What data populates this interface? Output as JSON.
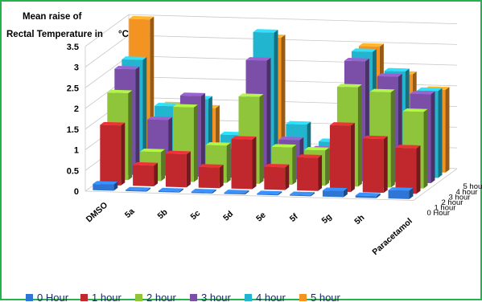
{
  "chart_data": {
    "type": "bar",
    "title": [
      "Mean raise of",
      "Rectal Temperature in"
    ],
    "title_unit": "°C",
    "categories": [
      "DMSO",
      "5a",
      "5b",
      "5c",
      "5d",
      "5e",
      "5f",
      "5g",
      "5h",
      "Paracetamol"
    ],
    "ylim": [
      0,
      3.5
    ],
    "yticks": [
      "0",
      "0.5",
      "1",
      "1.5",
      "2",
      "2.5",
      "3",
      "3.5"
    ],
    "depth_labels": [
      "0 Hour",
      "1 hour",
      "2 hour",
      "3 hour",
      "4 hour",
      "5 hour"
    ],
    "series": [
      {
        "name": "0 Hour",
        "color": "#2e75d6",
        "values": [
          0.15,
          0.03,
          0.03,
          0.03,
          0.03,
          0.03,
          0.03,
          0.15,
          0.05,
          0.2
        ]
      },
      {
        "name": "1 hour",
        "color": "#c0282d",
        "values": [
          1.45,
          0.5,
          0.8,
          0.5,
          1.2,
          0.55,
          0.8,
          1.6,
          1.3,
          1.1
        ]
      },
      {
        "name": "2 hour",
        "color": "#8fc53a",
        "values": [
          2.1,
          0.7,
          1.8,
          0.9,
          2.1,
          0.9,
          0.85,
          2.4,
          2.3,
          1.85
        ]
      },
      {
        "name": "3 hour",
        "color": "#7b4fa8",
        "values": [
          2.55,
          1.35,
          1.95,
          0.7,
          2.85,
          0.95,
          0.75,
          2.9,
          2.55,
          2.15
        ]
      },
      {
        "name": "4 hour",
        "color": "#22b5d0",
        "values": [
          2.65,
          1.55,
          1.75,
          0.9,
          3.4,
          1.2,
          0.8,
          3.0,
          2.55,
          2.1
        ]
      },
      {
        "name": "5 hour",
        "color": "#f39322",
        "values": [
          3.5,
          1.45,
          1.4,
          0.45,
          3.15,
          0.45,
          0.3,
          3.0,
          2.35,
          2.0
        ]
      }
    ],
    "legend_position": "bottom",
    "grid": true
  }
}
